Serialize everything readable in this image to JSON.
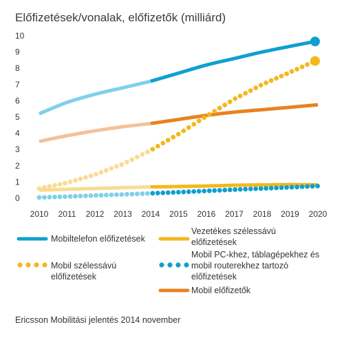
{
  "chart_data": {
    "type": "line",
    "title": "Előfizetések/vonalak, előfizetők (milliárd)",
    "xlabel": "",
    "ylabel": "",
    "xlim": [
      2010,
      2020
    ],
    "ylim": [
      0,
      10
    ],
    "grid": false,
    "x_ticks": [
      "2010",
      "2011",
      "2012",
      "2013",
      "2014",
      "2015",
      "2016",
      "2017",
      "2018",
      "2019",
      "2020"
    ],
    "y_ticks": [
      "0",
      "1",
      "2",
      "3",
      "4",
      "5",
      "6",
      "7",
      "8",
      "9",
      "10"
    ],
    "forecast_from": 2014,
    "series": [
      {
        "name": "Mobiltelefon előfizetések",
        "style": "line",
        "color": "#0f9fd1",
        "history_color": "#7fd0ea",
        "endpoint": true,
        "x": [
          2010,
          2011,
          2012,
          2013,
          2014,
          2015,
          2016,
          2017,
          2018,
          2019,
          2019.9
        ],
        "y": [
          5.2,
          5.9,
          6.4,
          6.8,
          7.2,
          7.7,
          8.2,
          8.6,
          9.0,
          9.35,
          9.65
        ]
      },
      {
        "name": "Mobil előfizetők",
        "style": "line",
        "color": "#e8821f",
        "history_color": "#f4c19a",
        "endpoint": false,
        "x": [
          2010,
          2011,
          2012,
          2013,
          2014,
          2015,
          2016,
          2017,
          2018,
          2019,
          2020
        ],
        "y": [
          3.5,
          3.85,
          4.15,
          4.4,
          4.6,
          4.85,
          5.1,
          5.3,
          5.45,
          5.6,
          5.75
        ]
      },
      {
        "name": "Vezetékes szélessávú előfizetések",
        "style": "line",
        "color": "#f3b81c",
        "history_color": "#f8dc94",
        "endpoint": false,
        "x": [
          2010,
          2011,
          2012,
          2013,
          2014,
          2015,
          2016,
          2017,
          2018,
          2019,
          2020
        ],
        "y": [
          0.5,
          0.55,
          0.6,
          0.65,
          0.7,
          0.72,
          0.75,
          0.8,
          0.82,
          0.84,
          0.82
        ]
      },
      {
        "name": "Mobil szélessávú előfizetések",
        "style": "dots",
        "color": "#f3b81c",
        "history_color": "#f8dc94",
        "endpoint": true,
        "x": [
          2010,
          2011,
          2012,
          2013,
          2014,
          2015,
          2016,
          2017,
          2018,
          2019,
          2019.9
        ],
        "y": [
          0.6,
          0.95,
          1.45,
          2.1,
          2.95,
          3.95,
          5.05,
          6.1,
          7.0,
          7.75,
          8.45
        ]
      },
      {
        "name": "Mobil PC-khez, táblagépekhez és mobil routerekhez tartozó előfizetések",
        "style": "dots",
        "color": "#0f9fd1",
        "history_color": "#7fd0ea",
        "endpoint": false,
        "x": [
          2010,
          2011,
          2012,
          2013,
          2014,
          2015,
          2016,
          2017,
          2018,
          2019,
          2020
        ],
        "y": [
          0.05,
          0.1,
          0.17,
          0.23,
          0.3,
          0.37,
          0.45,
          0.53,
          0.6,
          0.67,
          0.75
        ]
      }
    ]
  },
  "legend": {
    "mobile_phone": "Mobiltelefon előfizetések",
    "fixed_broadband": "Vezetékes szélessávú előfizetések",
    "mobile_broadband": "Mobil szélessávú előfizetések",
    "mobile_pc": "Mobil PC-khez, táblagépekhez és mobil routerekhez tartozó előfizetések",
    "mobile_subscribers": "Mobil előfizetők"
  },
  "source": "Ericsson Mobilitási jelentés 2014 november"
}
